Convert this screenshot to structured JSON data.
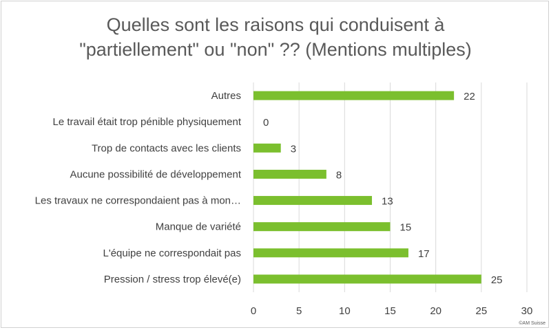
{
  "chart_data": {
    "type": "bar",
    "orientation": "horizontal",
    "title_lines": [
      "Quelles sont les raisons qui conduisent à",
      "\"partiellement\" ou \"non\" ?? (Mentions multiples)"
    ],
    "categories": [
      "Autres",
      "Le travail était trop pénible physiquement",
      "Trop de contacts avec les clients",
      "Aucune possibilité de développement",
      "Les travaux ne correspondaient pas à mon…",
      "Manque de variété",
      "L'équipe ne correspondait pas",
      "Pression / stress trop élevé(e)"
    ],
    "values": [
      22,
      0,
      3,
      8,
      13,
      15,
      17,
      25
    ],
    "xlim": [
      0,
      30
    ],
    "xticks": [
      0,
      5,
      10,
      15,
      20,
      25,
      30
    ],
    "grid": "vertical",
    "bar_color": "#7bbf2e",
    "legend": "none"
  },
  "footer": {
    "source": "©AM Suisse"
  }
}
